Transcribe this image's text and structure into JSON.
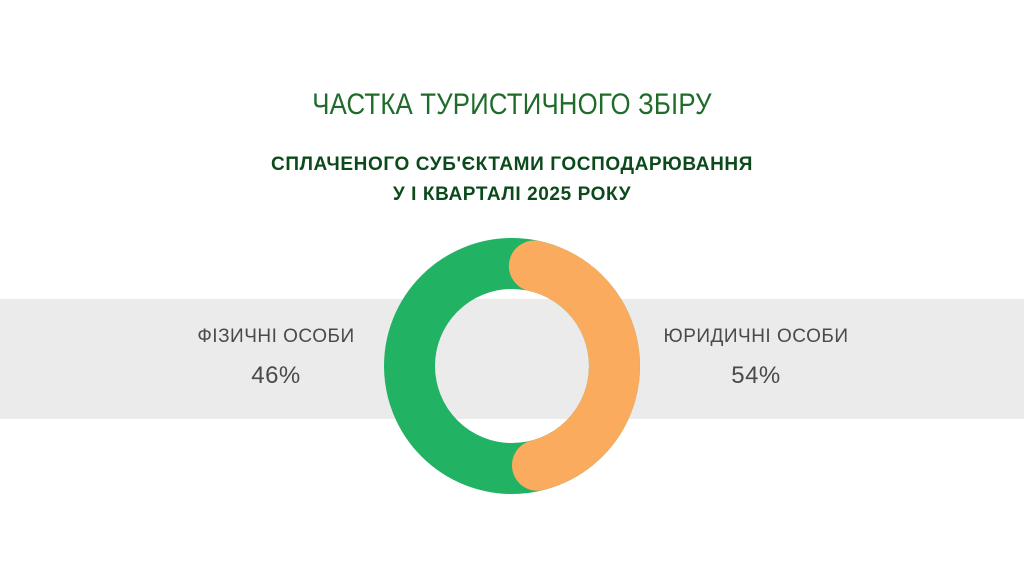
{
  "title": "ЧАСТКА ТУРИСТИЧНОГО ЗБІРУ",
  "subtitle_line1": "СПЛАЧЕНОГО СУБ'ЄКТАМИ  ГОСПОДАРЮВАННЯ",
  "subtitle_line2": "У І КВАРТАЛІ 2025 РОКУ",
  "colors": {
    "title": "#1f6b2a",
    "subtitle": "#0c4a1c",
    "individuals": "#22b264",
    "legal": "#fbab5d",
    "band": "#ebebeb"
  },
  "chart_data": {
    "type": "pie",
    "donut": true,
    "categories": [
      "ФІЗИЧНІ ОСОБИ",
      "ЮРИДИЧНІ ОСОБИ"
    ],
    "values": [
      46,
      54
    ],
    "value_labels": [
      "46%",
      "54%"
    ],
    "colors": [
      "#22b264",
      "#fbab5d"
    ]
  }
}
